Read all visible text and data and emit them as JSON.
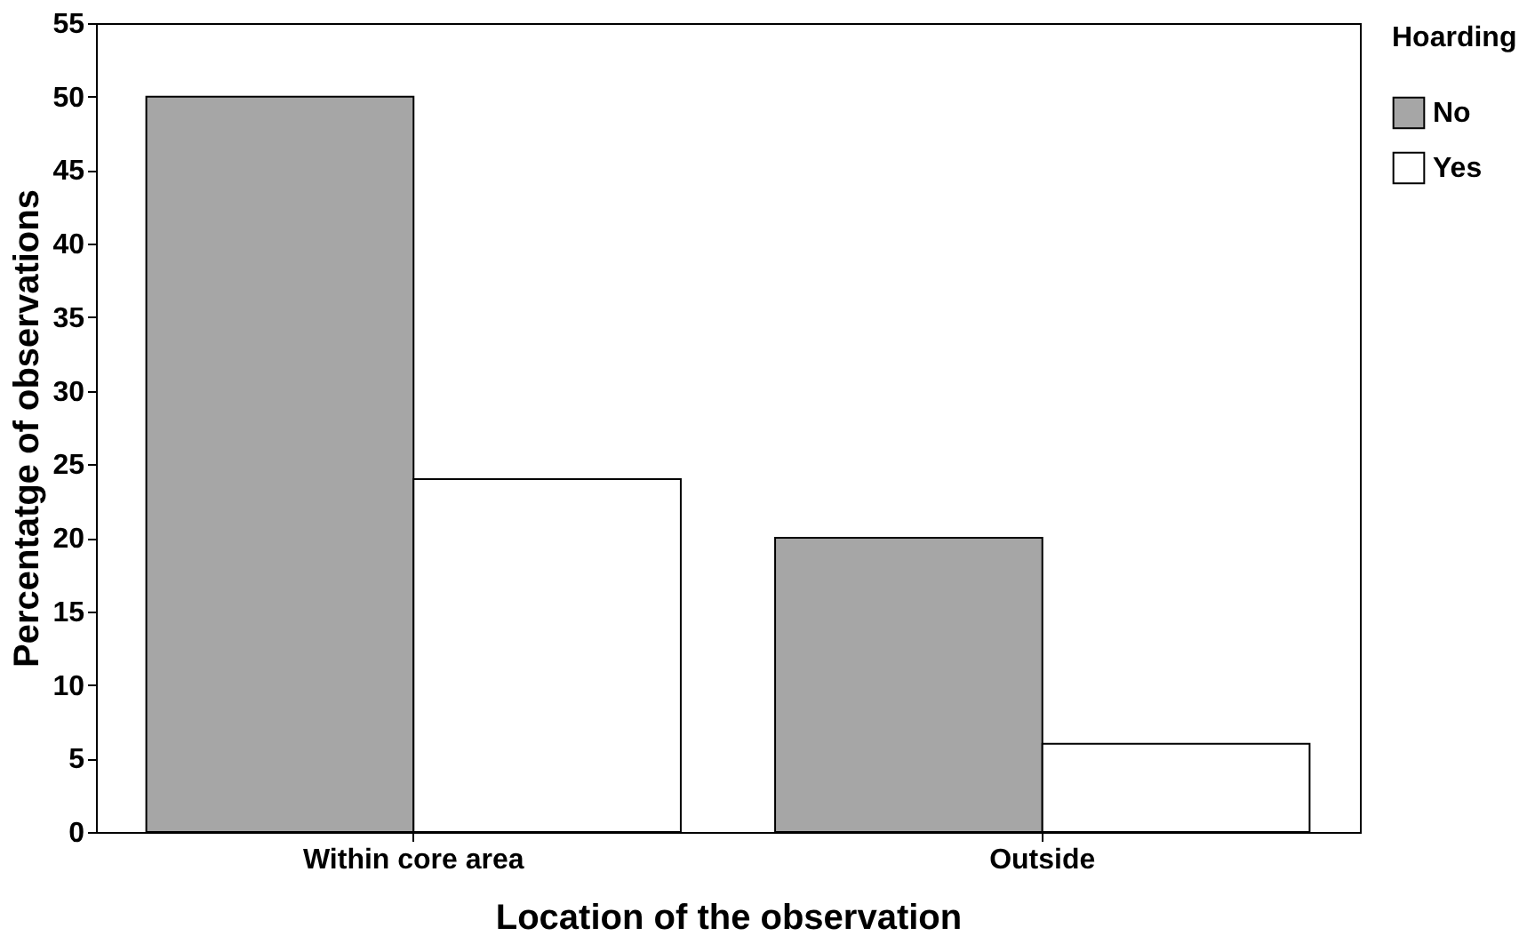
{
  "chart_data": {
    "type": "bar",
    "xlabel": "Location of the observation",
    "ylabel": "Percentatge of observations",
    "legend_title": "Hoarding",
    "categories": [
      "Within core area",
      "Outside"
    ],
    "series": [
      {
        "name": "No",
        "color": "#a6a6a6",
        "values": [
          50,
          20
        ]
      },
      {
        "name": "Yes",
        "color": "#ffffff",
        "values": [
          24,
          6
        ]
      }
    ],
    "ylim": [
      0,
      55
    ],
    "yticks": [
      0,
      5,
      10,
      15,
      20,
      25,
      30,
      35,
      40,
      45,
      50,
      55
    ],
    "grid": false,
    "legend": "right"
  }
}
